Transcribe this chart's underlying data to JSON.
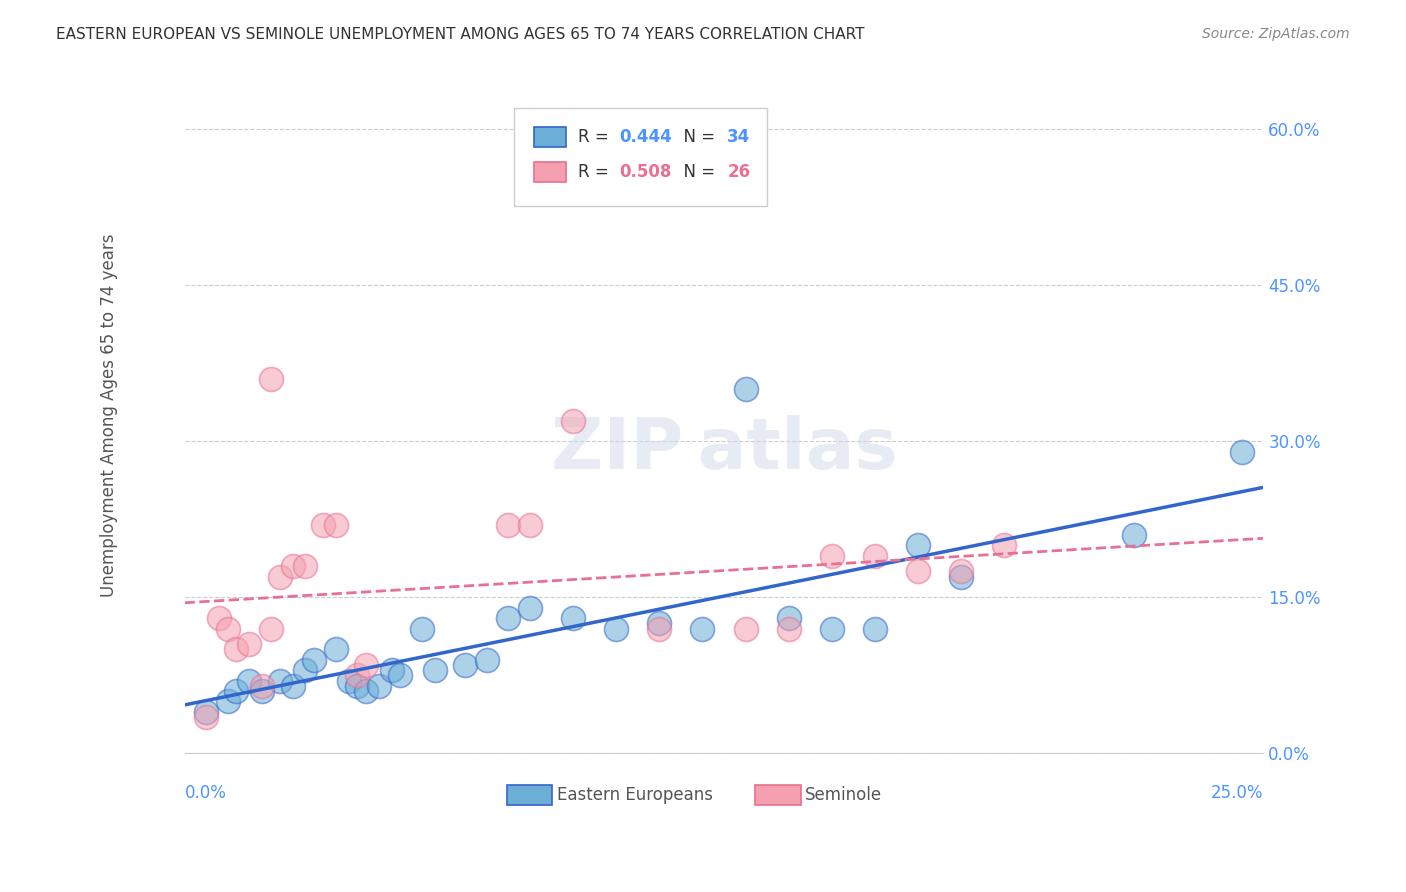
{
  "title": "EASTERN EUROPEAN VS SEMINOLE UNEMPLOYMENT AMONG AGES 65 TO 74 YEARS CORRELATION CHART",
  "source": "Source: ZipAtlas.com",
  "ylabel": "Unemployment Among Ages 65 to 74 years",
  "xlim": [
    0.0,
    0.25
  ],
  "ylim": [
    0.0,
    0.65
  ],
  "ytick_labels": [
    "0.0%",
    "15.0%",
    "30.0%",
    "45.0%",
    "60.0%"
  ],
  "ytick_values": [
    0.0,
    0.15,
    0.3,
    0.45,
    0.6
  ],
  "blue_r": 0.444,
  "blue_n": 34,
  "pink_r": 0.508,
  "pink_n": 26,
  "blue_color": "#6baed6",
  "pink_color": "#f4a0b0",
  "blue_line_color": "#3366cc",
  "pink_line_color": "#e87090",
  "blue_points": [
    [
      0.005,
      0.04
    ],
    [
      0.01,
      0.05
    ],
    [
      0.012,
      0.06
    ],
    [
      0.015,
      0.07
    ],
    [
      0.018,
      0.06
    ],
    [
      0.022,
      0.07
    ],
    [
      0.025,
      0.065
    ],
    [
      0.028,
      0.08
    ],
    [
      0.03,
      0.09
    ],
    [
      0.035,
      0.1
    ],
    [
      0.038,
      0.07
    ],
    [
      0.04,
      0.065
    ],
    [
      0.042,
      0.06
    ],
    [
      0.045,
      0.065
    ],
    [
      0.048,
      0.08
    ],
    [
      0.05,
      0.075
    ],
    [
      0.055,
      0.12
    ],
    [
      0.058,
      0.08
    ],
    [
      0.065,
      0.085
    ],
    [
      0.07,
      0.09
    ],
    [
      0.075,
      0.13
    ],
    [
      0.08,
      0.14
    ],
    [
      0.09,
      0.13
    ],
    [
      0.1,
      0.12
    ],
    [
      0.11,
      0.125
    ],
    [
      0.12,
      0.12
    ],
    [
      0.13,
      0.35
    ],
    [
      0.14,
      0.13
    ],
    [
      0.15,
      0.12
    ],
    [
      0.16,
      0.12
    ],
    [
      0.17,
      0.2
    ],
    [
      0.18,
      0.17
    ],
    [
      0.22,
      0.21
    ],
    [
      0.245,
      0.29
    ]
  ],
  "pink_points": [
    [
      0.005,
      0.035
    ],
    [
      0.008,
      0.13
    ],
    [
      0.01,
      0.12
    ],
    [
      0.012,
      0.1
    ],
    [
      0.015,
      0.105
    ],
    [
      0.018,
      0.065
    ],
    [
      0.02,
      0.12
    ],
    [
      0.022,
      0.17
    ],
    [
      0.025,
      0.18
    ],
    [
      0.028,
      0.18
    ],
    [
      0.032,
      0.22
    ],
    [
      0.035,
      0.22
    ],
    [
      0.04,
      0.075
    ],
    [
      0.042,
      0.085
    ],
    [
      0.075,
      0.22
    ],
    [
      0.08,
      0.22
    ],
    [
      0.09,
      0.32
    ],
    [
      0.11,
      0.12
    ],
    [
      0.13,
      0.12
    ],
    [
      0.14,
      0.12
    ],
    [
      0.15,
      0.19
    ],
    [
      0.16,
      0.19
    ],
    [
      0.17,
      0.175
    ],
    [
      0.18,
      0.175
    ],
    [
      0.19,
      0.2
    ],
    [
      0.02,
      0.36
    ]
  ]
}
